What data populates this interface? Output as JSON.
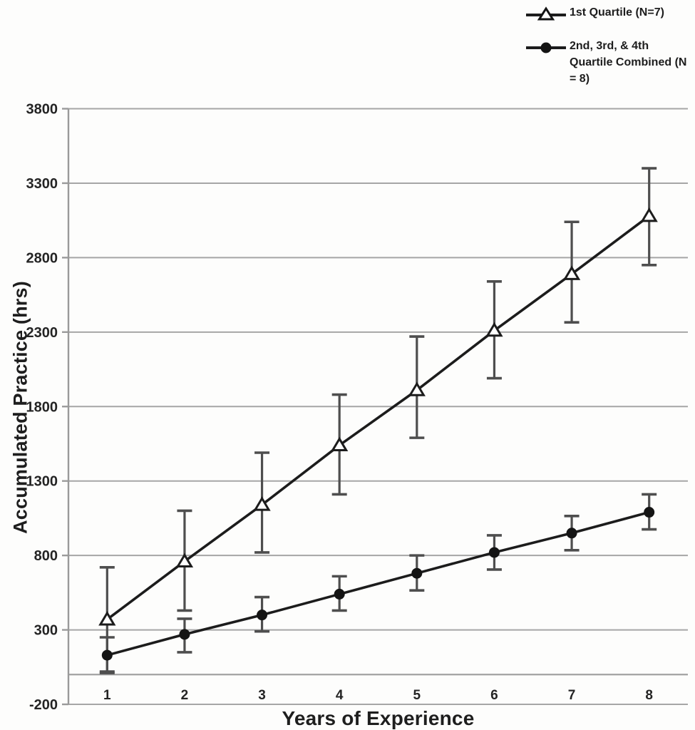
{
  "figure": {
    "background": "#fdfdfc"
  },
  "legend": {
    "position": "top-right",
    "items": [
      {
        "label": "1st Quartile (N=7)",
        "marker": "triangle-open"
      },
      {
        "label": "2nd, 3rd, & 4th Quartile Combined (N = 8)",
        "marker": "circle-filled"
      }
    ]
  },
  "chart_data": {
    "type": "line",
    "title": "",
    "xlabel": "Years of Experience",
    "ylabel": "Accumulated Practice (hrs)",
    "x": [
      1,
      2,
      3,
      4,
      5,
      6,
      7,
      8
    ],
    "xlim_categories": 8,
    "ylim": [
      -200,
      3800
    ],
    "yticks": [
      -200,
      300,
      800,
      1300,
      1800,
      2300,
      2800,
      3300,
      3800
    ],
    "grid": true,
    "error_bars": true,
    "legend_position": "top-right",
    "series": [
      {
        "name": "1st Quartile (N=7)",
        "marker": "triangle-open",
        "values": [
          370,
          760,
          1140,
          1540,
          1910,
          2310,
          2690,
          3080
        ],
        "error_low": [
          20,
          430,
          820,
          1210,
          1590,
          1990,
          2365,
          2750
        ],
        "error_high": [
          720,
          1100,
          1490,
          1880,
          2270,
          2640,
          3040,
          3400
        ]
      },
      {
        "name": "2nd, 3rd, & 4th Quartile Combined (N = 8)",
        "marker": "circle-filled",
        "values": [
          130,
          270,
          400,
          540,
          680,
          820,
          950,
          1090
        ],
        "error_low": [
          10,
          150,
          290,
          430,
          565,
          705,
          835,
          975
        ],
        "error_high": [
          250,
          375,
          520,
          660,
          800,
          935,
          1065,
          1210
        ]
      }
    ],
    "colors": {
      "line": "#1c1c1c",
      "error_bar": "#4e4e4e",
      "grid": "#a6a6a6",
      "axis": "#9a9a9a",
      "tick_text": "#242424",
      "marker_fill_open": "#ffffff",
      "marker_fill_solid": "#141414"
    }
  }
}
